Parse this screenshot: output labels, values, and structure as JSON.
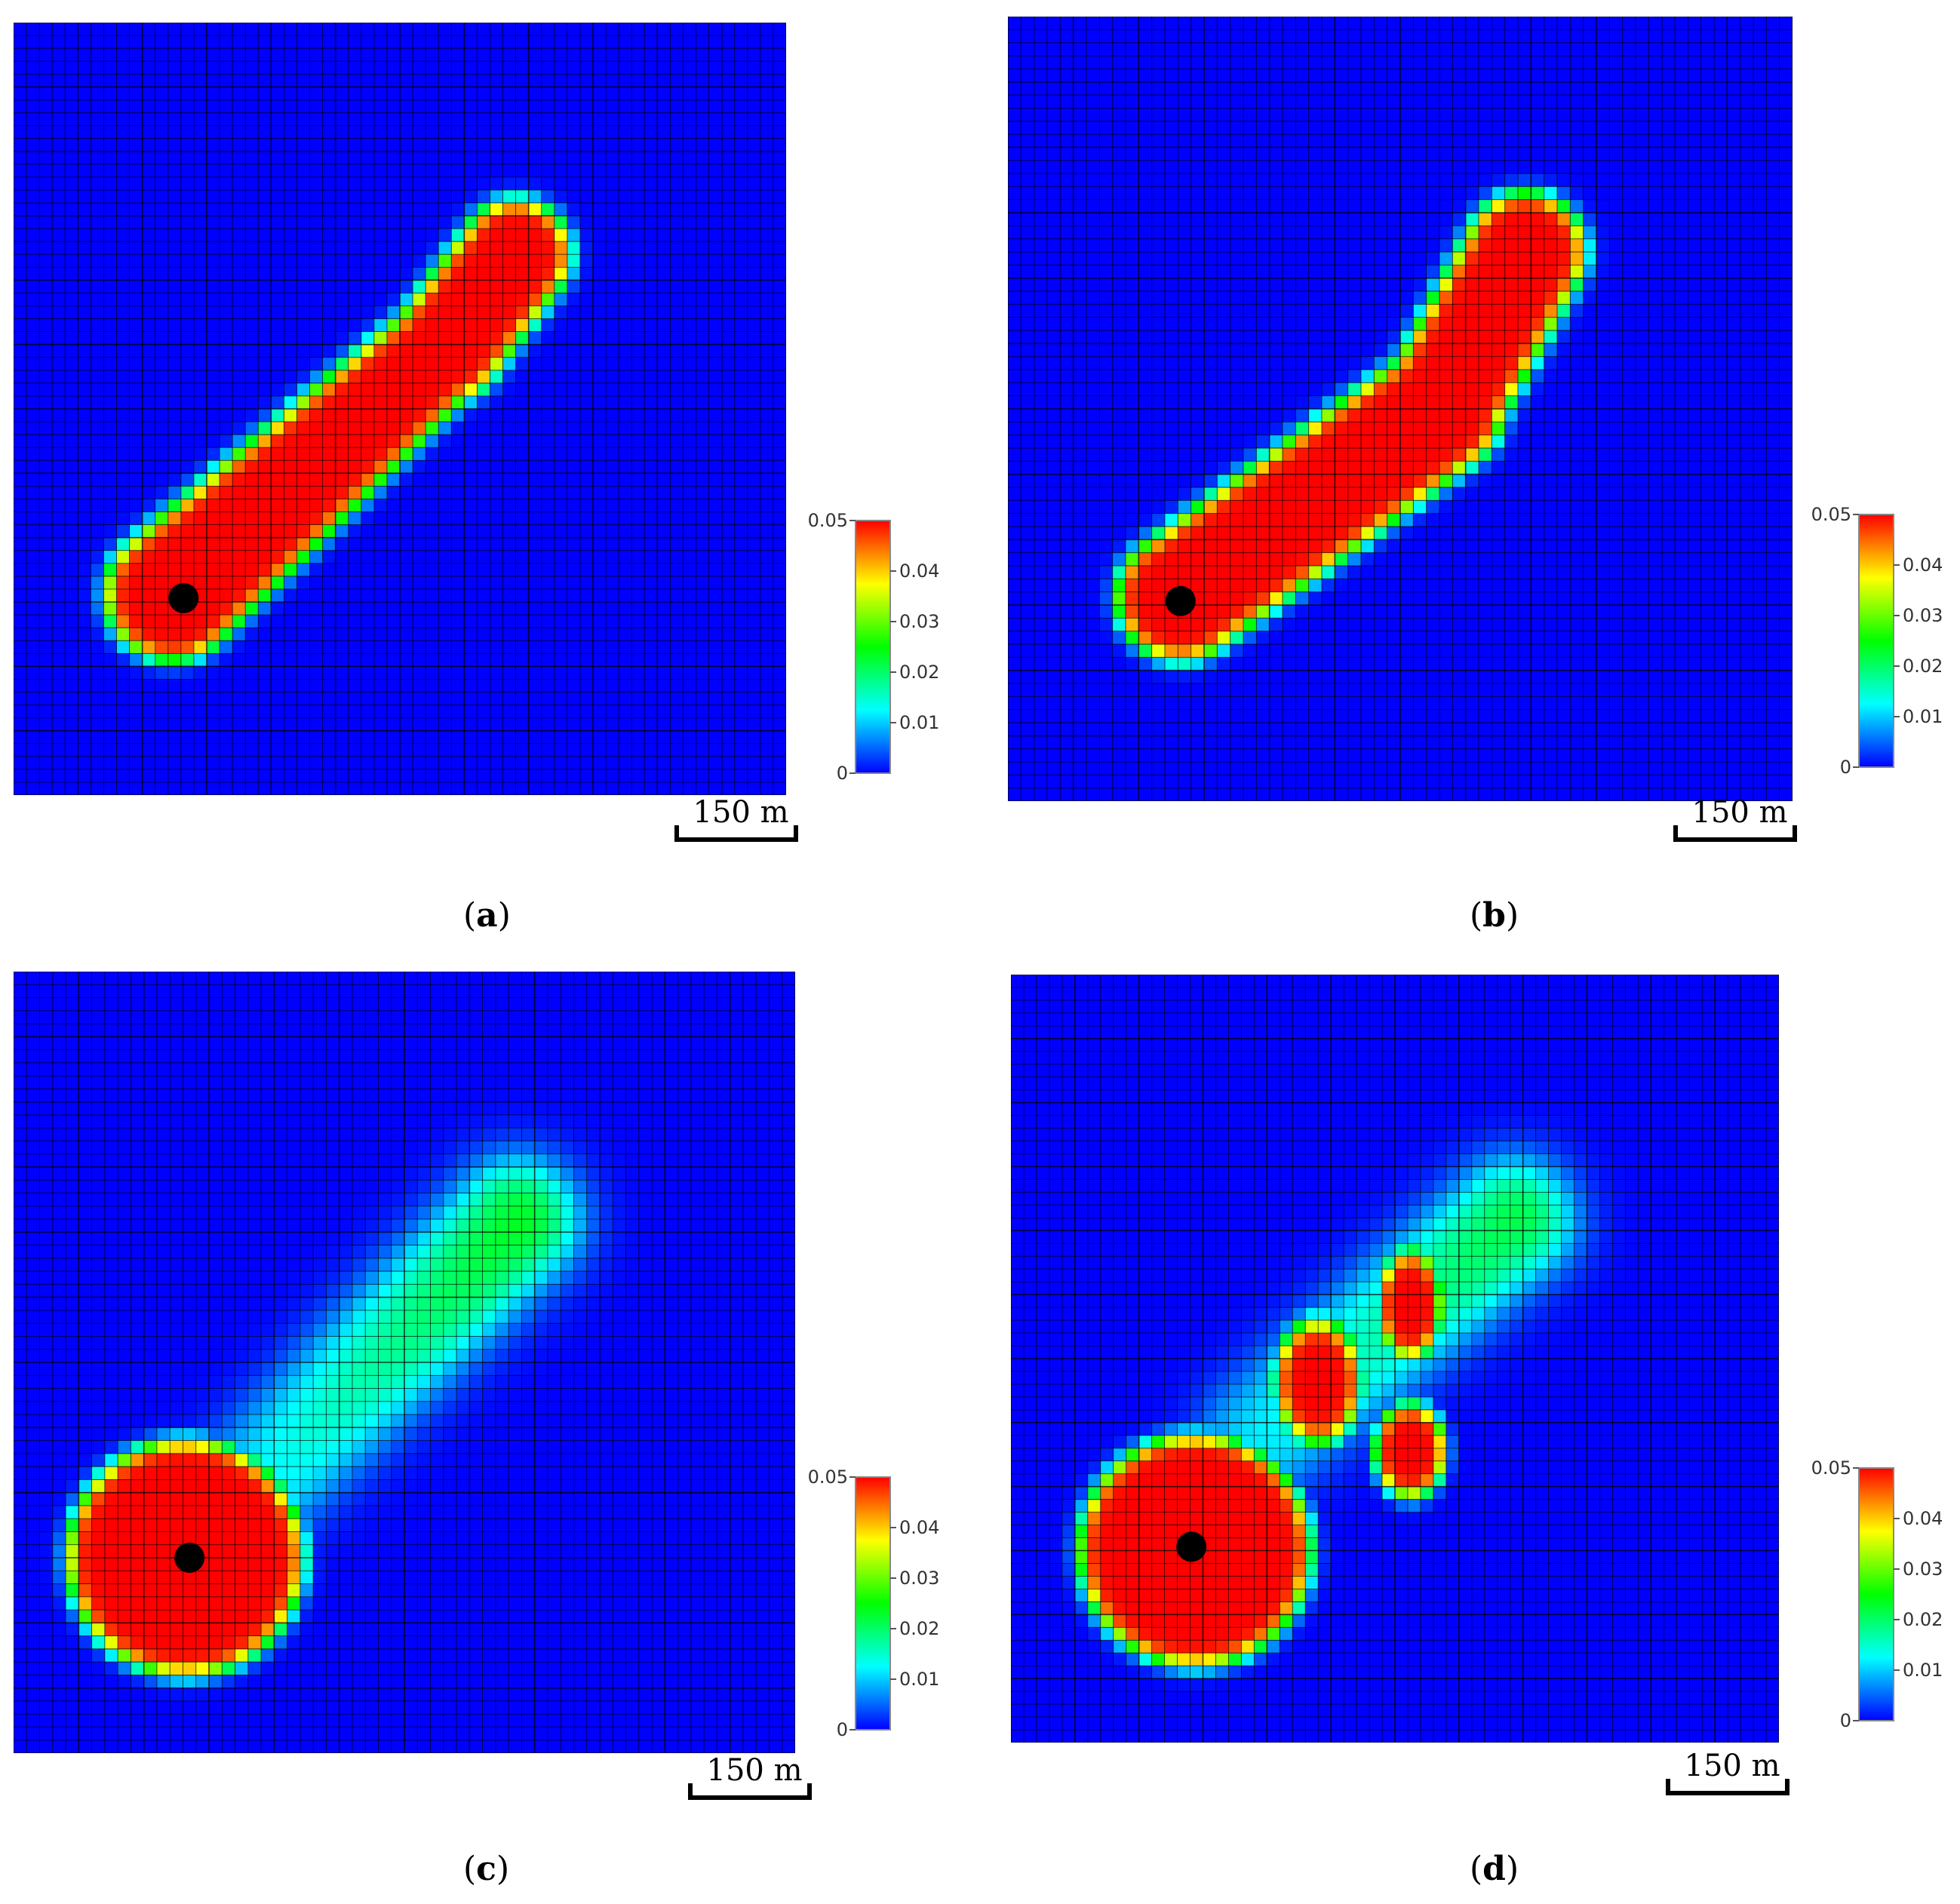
{
  "figure": {
    "panels": [
      {
        "id": "a",
        "caption_letter": "a"
      },
      {
        "id": "b",
        "caption_letter": "b"
      },
      {
        "id": "c",
        "caption_letter": "c"
      },
      {
        "id": "d",
        "caption_letter": "d"
      }
    ]
  },
  "colorbar": {
    "min_label": "0",
    "max_label": "0.05",
    "tick_labels": [
      "0.01",
      "0.02",
      "0.03",
      "0.04"
    ],
    "colors": [
      "#0000ff",
      "#00ffff",
      "#00ff00",
      "#ffff00",
      "#ff0000"
    ]
  },
  "scale_bar": {
    "label": "150 m"
  },
  "chart_data": [
    {
      "panel": "a",
      "type": "heatmap",
      "value_range": [
        0,
        0.05
      ],
      "colorbar_ticks": [
        0,
        0.01,
        0.02,
        0.03,
        0.04,
        0.05
      ],
      "description_values": {
        "background": 0,
        "plume_core": 0.05
      }
    },
    {
      "panel": "b",
      "type": "heatmap",
      "value_range": [
        0,
        0.05
      ],
      "colorbar_ticks": [
        0,
        0.01,
        0.02,
        0.03,
        0.04,
        0.05
      ],
      "description_values": {
        "background": 0,
        "plume_core": 0.05
      }
    },
    {
      "panel": "c",
      "type": "heatmap",
      "value_range": [
        0,
        0.05
      ],
      "colorbar_ticks": [
        0,
        0.01,
        0.02,
        0.03,
        0.04,
        0.05
      ],
      "description_values": {
        "background": 0,
        "source_disc": 0.05,
        "trailing_plume": 0.015
      }
    },
    {
      "panel": "d",
      "type": "heatmap",
      "value_range": [
        0,
        0.05
      ],
      "colorbar_ticks": [
        0,
        0.01,
        0.02,
        0.03,
        0.04,
        0.05
      ],
      "description_values": {
        "background": 0,
        "source_disc": 0.05,
        "detached_blobs": 0.05,
        "trailing_plume": 0.015
      }
    }
  ]
}
